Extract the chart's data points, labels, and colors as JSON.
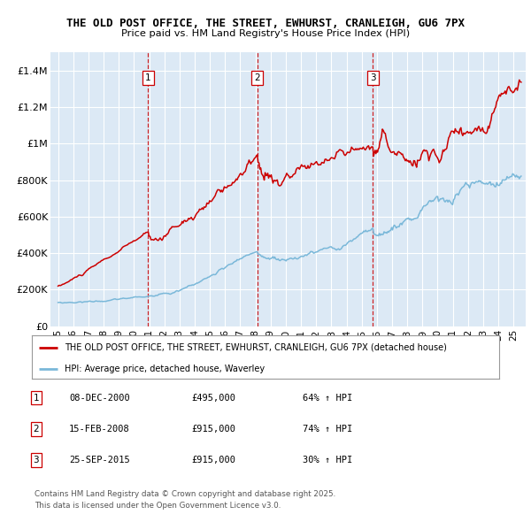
{
  "title": "THE OLD POST OFFICE, THE STREET, EWHURST, CRANLEIGH, GU6 7PX",
  "subtitle": "Price paid vs. HM Land Registry's House Price Index (HPI)",
  "ylabel_ticks": [
    "£0",
    "£200K",
    "£400K",
    "£600K",
    "£800K",
    "£1M",
    "£1.2M",
    "£1.4M"
  ],
  "ylabel_values": [
    0,
    200000,
    400000,
    600000,
    800000,
    1000000,
    1200000,
    1400000
  ],
  "ylim": [
    0,
    1500000
  ],
  "xlim_start": 1994.5,
  "xlim_end": 2025.8,
  "background_color": "#dce9f5",
  "red_line_color": "#cc0000",
  "blue_line_color": "#7ab8d9",
  "purchase_dates": [
    2000.94,
    2008.12,
    2015.73
  ],
  "purchase_labels": [
    "1",
    "2",
    "3"
  ],
  "legend_label_red": "THE OLD POST OFFICE, THE STREET, EWHURST, CRANLEIGH, GU6 7PX (detached house)",
  "legend_label_blue": "HPI: Average price, detached house, Waverley",
  "table_rows": [
    [
      "1",
      "08-DEC-2000",
      "£495,000",
      "64% ↑ HPI"
    ],
    [
      "2",
      "15-FEB-2008",
      "£915,000",
      "74% ↑ HPI"
    ],
    [
      "3",
      "25-SEP-2015",
      "£915,000",
      "30% ↑ HPI"
    ]
  ],
  "footer": "Contains HM Land Registry data © Crown copyright and database right 2025.\nThis data is licensed under the Open Government Licence v3.0."
}
